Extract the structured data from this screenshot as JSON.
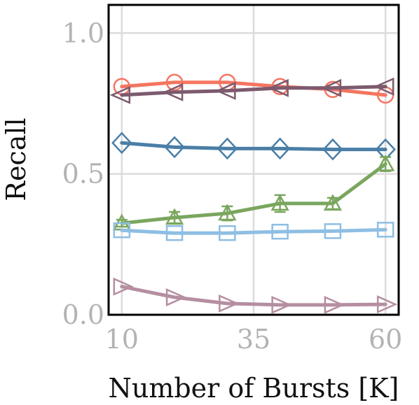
{
  "chart_data": {
    "type": "line",
    "xlabel": "Number of Bursts [K]",
    "ylabel": "Recall",
    "x": [
      10,
      20,
      30,
      40,
      50,
      60
    ],
    "xticks": [
      10,
      35,
      60
    ],
    "xtick_labels": [
      "10",
      "35",
      "60"
    ],
    "yticks": [
      0.0,
      0.5,
      1.0
    ],
    "ytick_labels": [
      "0.0",
      "0.5",
      "1.0"
    ],
    "xlim": [
      7.5,
      62.5
    ],
    "ylim": [
      0.0,
      1.1
    ],
    "grid": true,
    "legend": "none",
    "series": [
      {
        "color": "#f47560",
        "marker": "circle",
        "values": [
          0.81,
          0.825,
          0.825,
          0.81,
          0.8,
          0.78
        ],
        "errors": [
          0,
          0,
          0,
          0,
          0,
          0
        ]
      },
      {
        "color": "#7d5a6e",
        "marker": "triangle-left",
        "values": [
          0.78,
          0.79,
          0.795,
          0.805,
          0.805,
          0.81
        ],
        "errors": [
          0,
          0,
          0,
          0,
          0,
          0
        ]
      },
      {
        "color": "#4a7ea6",
        "marker": "diamond",
        "values": [
          0.61,
          0.595,
          0.59,
          0.59,
          0.587,
          0.587
        ],
        "errors": [
          0,
          0,
          0,
          0,
          0,
          0
        ]
      },
      {
        "color": "#7aa65e",
        "marker": "triangle-up",
        "values": [
          0.325,
          0.345,
          0.36,
          0.395,
          0.395,
          0.535
        ],
        "errors": [
          0.012,
          0.02,
          0.025,
          0.03,
          0.02,
          0.025
        ]
      },
      {
        "color": "#8ebee3",
        "marker": "square",
        "values": [
          0.3,
          0.29,
          0.29,
          0.295,
          0.297,
          0.302
        ],
        "errors": [
          0,
          0,
          0,
          0,
          0,
          0
        ]
      },
      {
        "color": "#b58ea1",
        "marker": "triangle-right",
        "values": [
          0.1,
          0.062,
          0.04,
          0.035,
          0.035,
          0.037
        ],
        "errors": [
          0,
          0,
          0,
          0,
          0,
          0
        ]
      }
    ]
  }
}
